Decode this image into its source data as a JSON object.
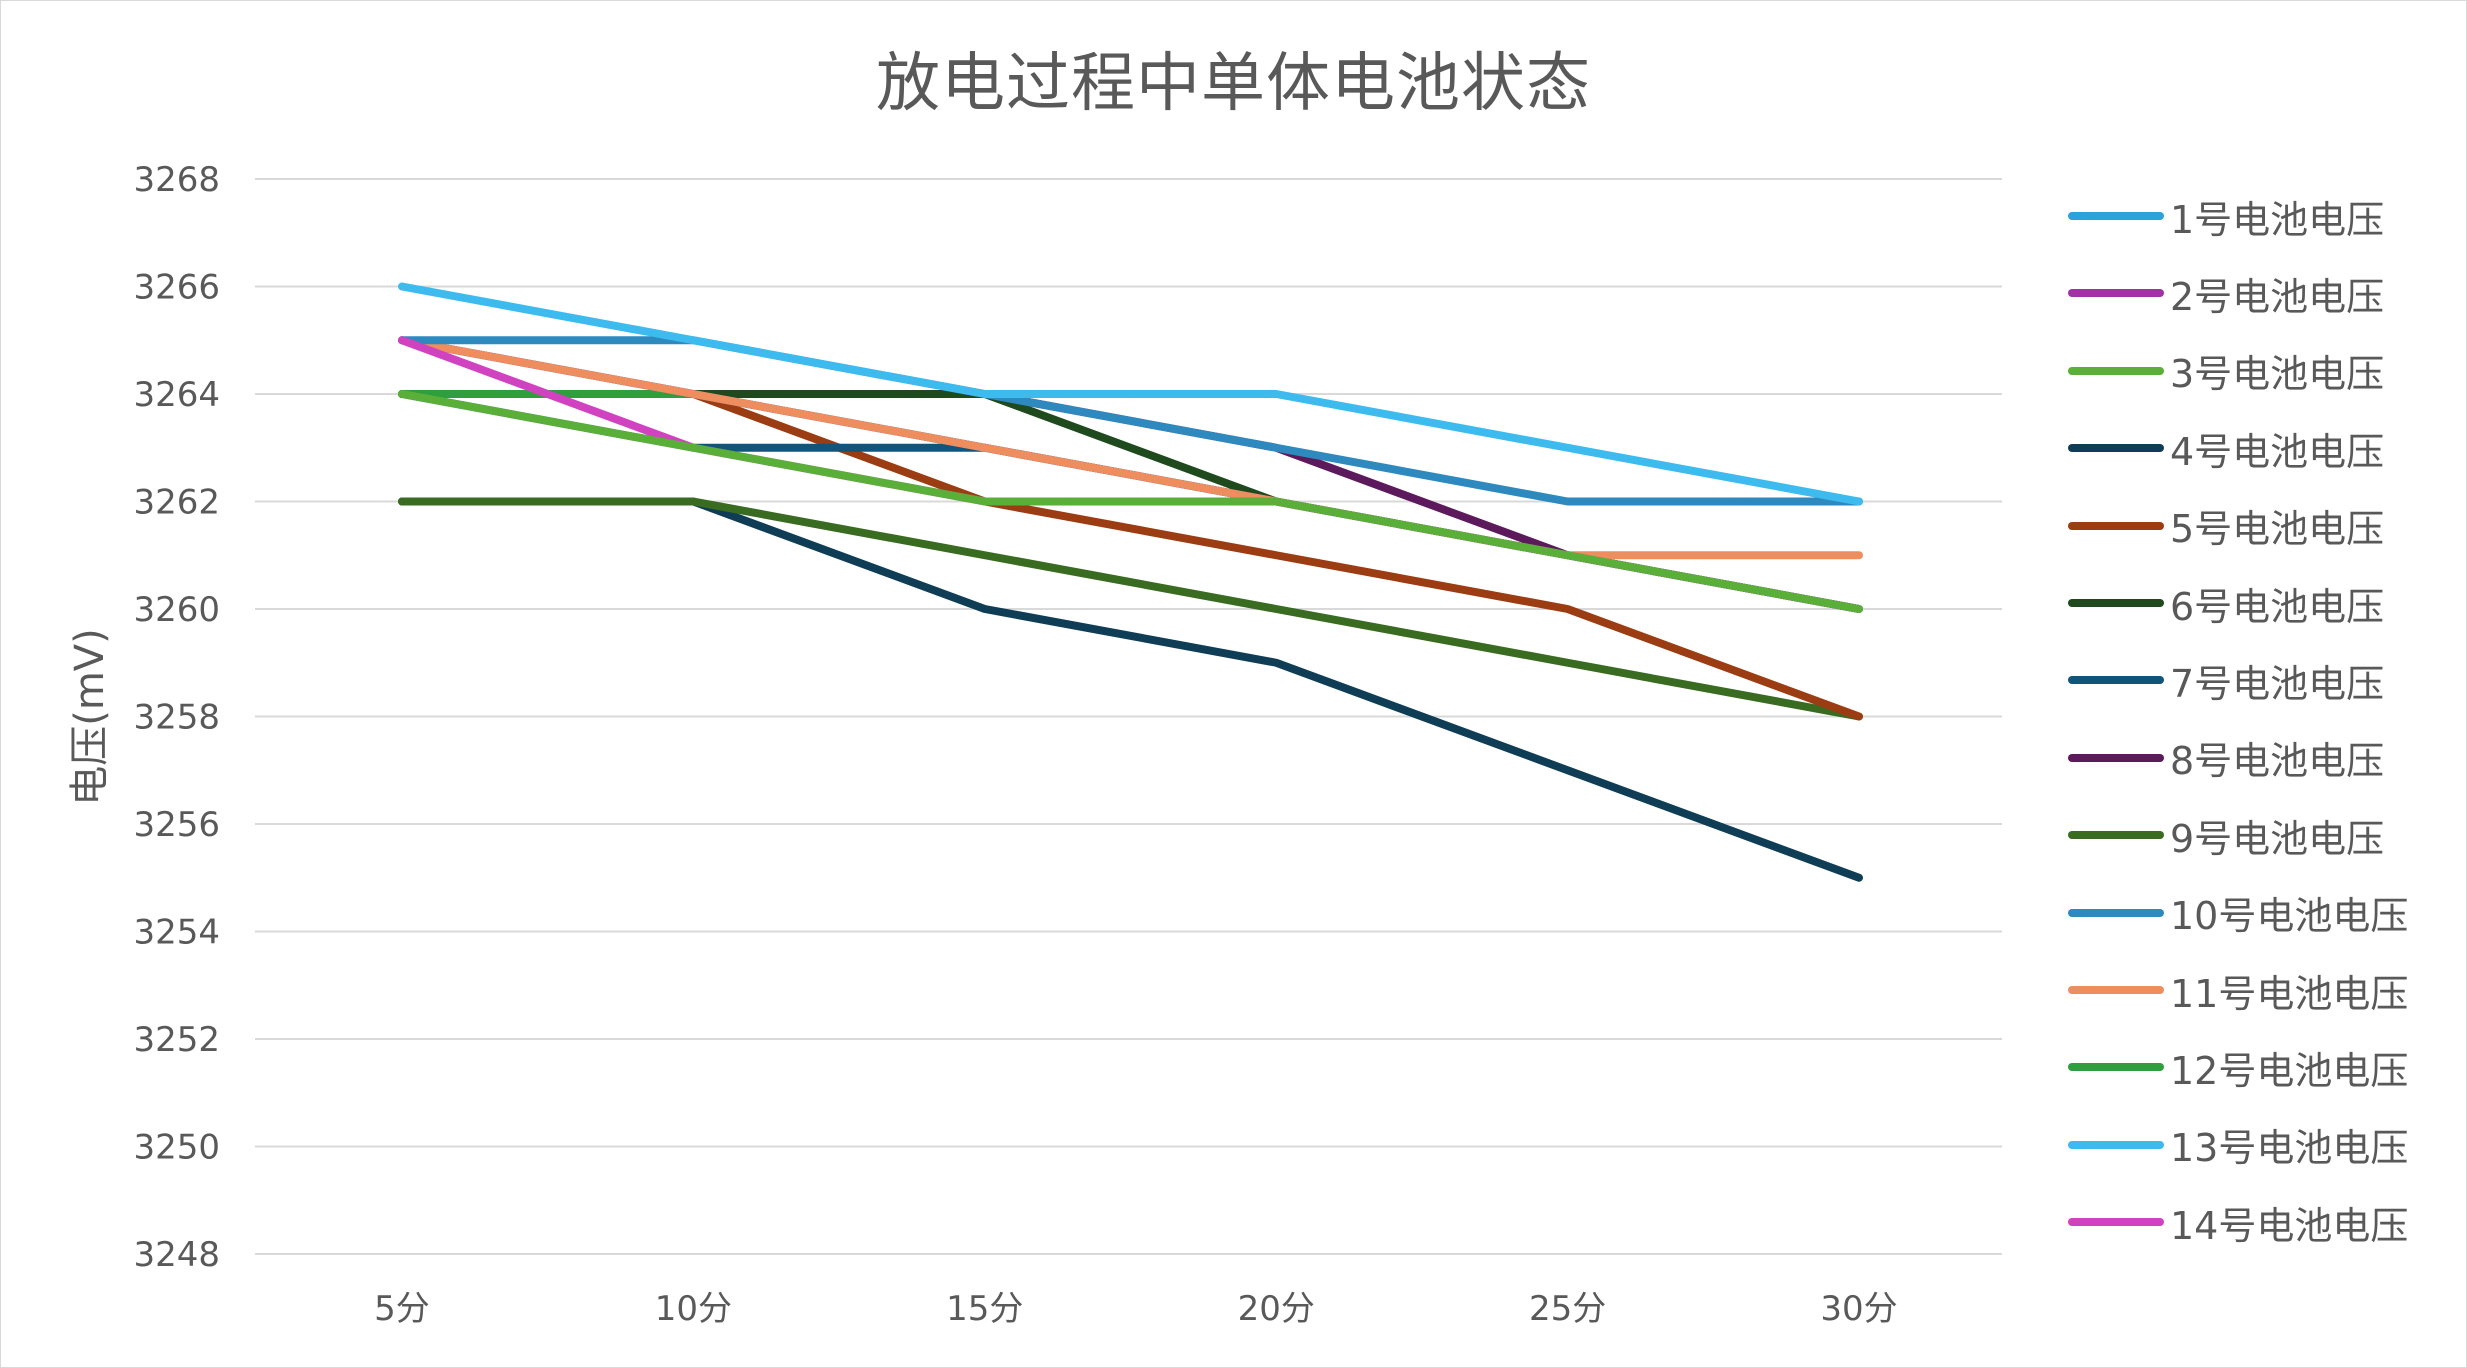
{
  "chart_data": {
    "type": "line",
    "title": "放电过程中单体电池状态",
    "xlabel": "",
    "ylabel": "电压(mV)",
    "categories": [
      "5分",
      "10分",
      "15分",
      "20分",
      "25分",
      "30分"
    ],
    "ylim": [
      3248,
      3268
    ],
    "y_ticks": [
      3248,
      3250,
      3252,
      3254,
      3256,
      3258,
      3260,
      3262,
      3264,
      3266,
      3268
    ],
    "grid": true,
    "legend_position": "right",
    "series": [
      {
        "name": "1号电池电压",
        "color": "#2AA3DA",
        "values": [
          3265,
          3264,
          3263,
          3262,
          3261,
          3260
        ]
      },
      {
        "name": "2号电池电压",
        "color": "#A232A3",
        "values": [
          3265,
          3264,
          3263,
          3262,
          3261,
          3260
        ]
      },
      {
        "name": "3号电池电压",
        "color": "#5AAF39",
        "values": [
          3264,
          3263,
          3262,
          3262,
          3261,
          3260
        ]
      },
      {
        "name": "4号电池电压",
        "color": "#0F3D56",
        "values": [
          3262,
          3262,
          3260,
          3259,
          3257,
          3255
        ]
      },
      {
        "name": "5号电池电压",
        "color": "#9C3C12",
        "values": [
          3265,
          3264,
          3262,
          3261,
          3260,
          3258
        ]
      },
      {
        "name": "6号电池电压",
        "color": "#1E4A1E",
        "values": [
          3264,
          3264,
          3264,
          3262,
          3261,
          3260
        ]
      },
      {
        "name": "7号电池电压",
        "color": "#11557B",
        "values": [
          3264,
          3263,
          3263,
          3262,
          3261,
          3260
        ]
      },
      {
        "name": "8号电池电压",
        "color": "#5C1A5C",
        "values": [
          3264,
          3264,
          3264,
          3263,
          3261,
          3260
        ]
      },
      {
        "name": "9号电池电压",
        "color": "#396B20",
        "values": [
          3262,
          3262,
          3261,
          3260,
          3259,
          3258
        ]
      },
      {
        "name": "10号电池电压",
        "color": "#2D89BE",
        "values": [
          3265,
          3265,
          3264,
          3263,
          3262,
          3262
        ]
      },
      {
        "name": "11号电池电压",
        "color": "#EE8E5E",
        "values": [
          3265,
          3264,
          3263,
          3262,
          3261,
          3261
        ]
      },
      {
        "name": "12号电池电压",
        "color": "#2E9E3E",
        "values": [
          3264,
          3264,
          3263,
          3262,
          3261,
          3260
        ]
      },
      {
        "name": "13号电池电压",
        "color": "#3DBBEF",
        "values": [
          3266,
          3265,
          3264,
          3264,
          3263,
          3262
        ]
      },
      {
        "name": "14号电池电压",
        "color": "#D142C0",
        "values": [
          3265,
          3263,
          3262,
          3262,
          3261,
          3260
        ]
      }
    ],
    "draw_order": [
      3,
      8,
      4,
      6,
      7,
      5,
      11,
      0,
      1,
      10,
      9,
      12,
      13,
      2
    ]
  }
}
